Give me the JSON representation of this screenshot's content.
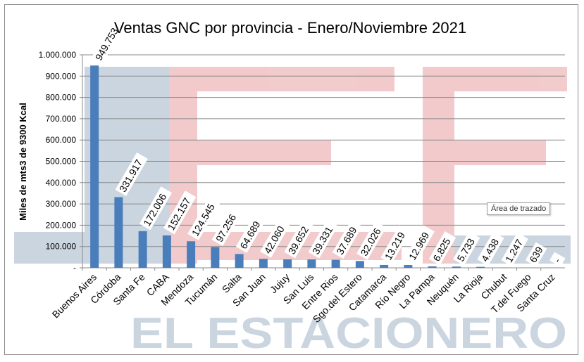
{
  "chart_data": {
    "type": "bar",
    "title": "Ventas GNC por provincia - Enero/Noviembre 2021",
    "ylabel": "Miles de mts3 de 9300 Kcal",
    "xlabel": "",
    "ylim": [
      0,
      1000000
    ],
    "yticks": [
      "-",
      "100.000",
      "200.000",
      "300.000",
      "400.000",
      "500.000",
      "600.000",
      "700.000",
      "800.000",
      "900.000",
      "1.000.000"
    ],
    "categories": [
      "Buenos Aires",
      "Córdoba",
      "Santa Fe",
      "CABA",
      "Mendoza",
      "Tucumán",
      "Salta",
      "San Juan",
      "Jujuy",
      "San Luis",
      "Entre Rios",
      "Sgo.del Estero",
      "Catamarca",
      "Río Negro",
      "La Pampa",
      "Neuquén",
      "La Rioja",
      "Chubut",
      "T.del Fuego",
      "Santa Cruz"
    ],
    "values": [
      949753,
      331917,
      172006,
      152157,
      124545,
      97256,
      64689,
      42060,
      39652,
      39331,
      37689,
      32026,
      13219,
      12969,
      6825,
      5733,
      4438,
      1247,
      639,
      0
    ],
    "data_labels": [
      "949.753",
      "331.917",
      "172.006",
      "152.157",
      "124.545",
      "97.256",
      "64.689",
      "42.060",
      "39.652",
      "39.331",
      "37.689",
      "32.026",
      "13.219",
      "12.969",
      "6.825",
      "5.733",
      "4.438",
      "1.247",
      "639",
      "-"
    ],
    "bar_color": "#4a7ebb",
    "grid": true,
    "legend": "none"
  },
  "tooltip": {
    "text": "Área de trazado"
  },
  "watermark": {
    "text": "EL ESTACIONERO",
    "colors": {
      "red": "#e8a0a3",
      "blue": "#9fb3c8"
    }
  }
}
